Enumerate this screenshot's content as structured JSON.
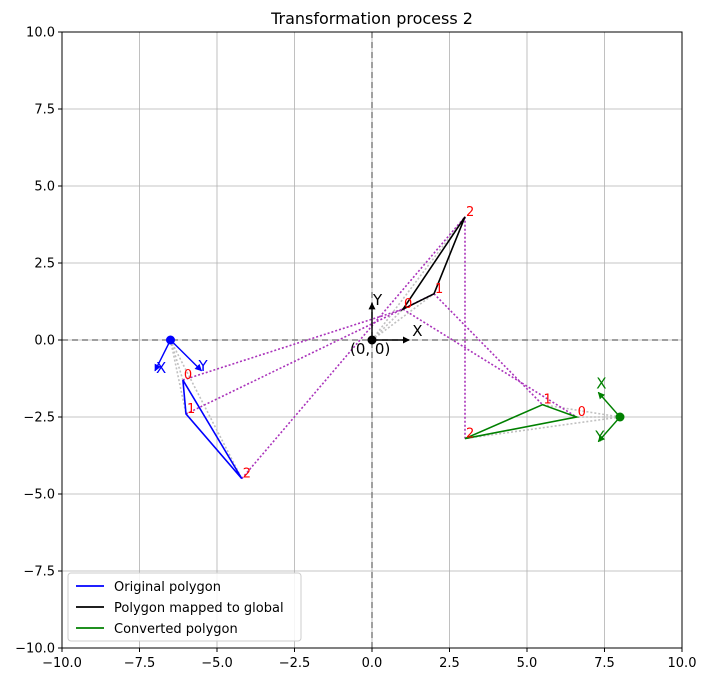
{
  "chart_data": {
    "type": "line",
    "title": "Transformation process 2",
    "xlabel": "",
    "ylabel": "",
    "xlim": [
      -10,
      10
    ],
    "ylim": [
      -10,
      10
    ],
    "xticks": [
      -10,
      -7.5,
      -5,
      -2.5,
      0,
      2.5,
      5,
      7.5,
      10
    ],
    "yticks": [
      -10,
      -7.5,
      -5,
      -2.5,
      0,
      2.5,
      5,
      7.5,
      10
    ],
    "xtick_labels": [
      "−10.0",
      "−7.5",
      "−5.0",
      "−2.5",
      "0.0",
      "2.5",
      "5.0",
      "7.5",
      "10.0"
    ],
    "ytick_labels": [
      "−10.0",
      "−7.5",
      "−5.0",
      "−2.5",
      "0.0",
      "2.5",
      "5.0",
      "7.5",
      "10.0"
    ],
    "grid": true,
    "legend_position": "lower-left",
    "series": [
      {
        "name": "Original polygon",
        "color": "#0000ff",
        "points": [
          [
            -6.1,
            -1.3
          ],
          [
            -6.0,
            -2.4
          ],
          [
            -4.2,
            -4.5
          ]
        ],
        "vertex_labels": [
          "0",
          "1",
          "2"
        ],
        "frame": {
          "origin": [
            -6.5,
            0.0
          ],
          "x_tip": [
            -7.0,
            -1.0
          ],
          "y_tip": [
            -5.5,
            -1.0
          ],
          "x_label": "X",
          "y_label": "Y"
        }
      },
      {
        "name": "Polygon mapped to global",
        "color": "#000000",
        "points": [
          [
            1.0,
            1.0
          ],
          [
            2.0,
            1.5
          ],
          [
            3.0,
            4.0
          ]
        ],
        "vertex_labels": [
          "0",
          "1",
          "2"
        ],
        "frame": {
          "origin": [
            0.0,
            0.0
          ],
          "x_tip": [
            1.2,
            0.0
          ],
          "y_tip": [
            0.0,
            1.2
          ],
          "x_label": "X",
          "y_label": "Y",
          "origin_label": "(0, 0)"
        }
      },
      {
        "name": "Converted polygon",
        "color": "#008000",
        "points": [
          [
            6.6,
            -2.5
          ],
          [
            5.5,
            -2.1
          ],
          [
            3.0,
            -3.2
          ]
        ],
        "vertex_labels": [
          "0",
          "1",
          "2"
        ],
        "frame": {
          "origin": [
            8.0,
            -2.5
          ],
          "x_tip": [
            7.3,
            -1.7
          ],
          "y_tip": [
            7.3,
            -3.3
          ],
          "x_label": "X",
          "y_label": "Y"
        }
      }
    ],
    "reference_lines": {
      "x": 0,
      "y": 0,
      "style": "dashed",
      "color": "#808080"
    },
    "correspondence_lines": [
      [
        [
          -6.1,
          -1.3
        ],
        [
          1.0,
          1.0
        ]
      ],
      [
        [
          -6.0,
          -2.4
        ],
        [
          2.0,
          1.5
        ]
      ],
      [
        [
          -4.2,
          -4.5
        ],
        [
          3.0,
          4.0
        ]
      ],
      [
        [
          1.0,
          1.0
        ],
        [
          6.6,
          -2.5
        ]
      ],
      [
        [
          2.0,
          1.5
        ],
        [
          5.5,
          -2.1
        ]
      ],
      [
        [
          3.0,
          4.0
        ],
        [
          3.0,
          -3.2
        ]
      ]
    ],
    "correspondence_color": "#aa33bb",
    "origin_links": [
      {
        "from": [
          -6.5,
          0.0
        ],
        "to": [
          [
            -6.1,
            -1.3
          ],
          [
            -6.0,
            -2.4
          ],
          [
            -4.2,
            -4.5
          ]
        ]
      },
      {
        "from": [
          0.0,
          0.0
        ],
        "to": [
          [
            1.0,
            1.0
          ],
          [
            2.0,
            1.5
          ],
          [
            3.0,
            4.0
          ]
        ]
      },
      {
        "from": [
          8.0,
          -2.5
        ],
        "to": [
          [
            6.6,
            -2.5
          ],
          [
            5.5,
            -2.1
          ],
          [
            3.0,
            -3.2
          ]
        ]
      }
    ],
    "origin_link_color": "#c0c0c0"
  }
}
